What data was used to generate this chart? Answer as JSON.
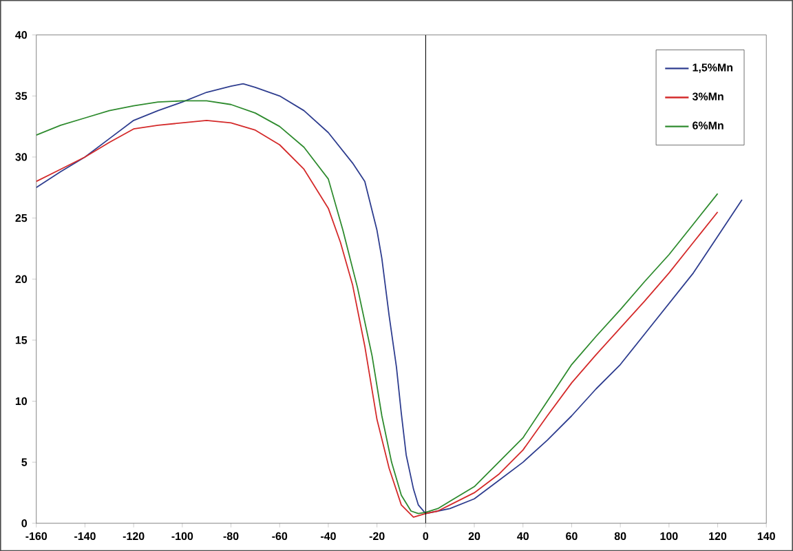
{
  "chart_data": {
    "type": "line",
    "xlim": [
      -160,
      140
    ],
    "ylim": [
      0,
      40
    ],
    "xticks": [
      -160,
      -140,
      -120,
      -100,
      -80,
      -60,
      -40,
      -20,
      0,
      20,
      40,
      60,
      80,
      100,
      120,
      140
    ],
    "yticks": [
      0,
      5,
      10,
      15,
      20,
      25,
      30,
      35,
      40
    ],
    "grid": false,
    "legend": "top right",
    "marker": "none",
    "ref_lines": [
      {
        "axis": "x",
        "value": 0,
        "color": "#000000"
      }
    ],
    "series": [
      {
        "name": "1,5%Mn",
        "color": "#2e3d8f",
        "x": [
          -160,
          -150,
          -140,
          -130,
          -120,
          -110,
          -100,
          -90,
          -80,
          -75,
          -70,
          -60,
          -50,
          -40,
          -30,
          -25,
          -20,
          -18,
          -15,
          -12,
          -10,
          -8,
          -5,
          -3,
          0,
          5,
          10,
          20,
          30,
          40,
          50,
          60,
          70,
          80,
          90,
          100,
          110,
          120,
          130
        ],
        "values": [
          27.5,
          28.8,
          30,
          31.5,
          33,
          33.8,
          34.5,
          35.3,
          35.8,
          36,
          35.7,
          35,
          33.8,
          32,
          29.5,
          28,
          24,
          21.7,
          17,
          12.8,
          9,
          5.6,
          2.8,
          1.5,
          0.8,
          1,
          1.2,
          2,
          3.5,
          5,
          6.8,
          8.8,
          11,
          13,
          15.5,
          18,
          20.5,
          23.5,
          26.5
        ]
      },
      {
        "name": "3%Mn",
        "color": "#d42a2a",
        "x": [
          -160,
          -150,
          -140,
          -130,
          -120,
          -110,
          -100,
          -90,
          -80,
          -70,
          -60,
          -50,
          -40,
          -35,
          -30,
          -25,
          -20,
          -15,
          -10,
          -5,
          0,
          5,
          10,
          20,
          30,
          40,
          50,
          60,
          70,
          80,
          90,
          100,
          110,
          120
        ],
        "values": [
          28,
          29,
          30,
          31.2,
          32.3,
          32.6,
          32.8,
          33,
          32.8,
          32.2,
          31,
          29,
          25.8,
          23,
          19.5,
          14.5,
          8.5,
          4.5,
          1.5,
          0.5,
          0.8,
          1,
          1.5,
          2.5,
          4,
          6,
          8.8,
          11.5,
          13.8,
          16,
          18.2,
          20.5,
          23,
          25.5
        ]
      },
      {
        "name": "6%Mn",
        "color": "#2e8b2e",
        "x": [
          -160,
          -150,
          -140,
          -130,
          -120,
          -110,
          -100,
          -90,
          -80,
          -70,
          -60,
          -50,
          -40,
          -34,
          -28,
          -22,
          -18,
          -14,
          -10,
          -6,
          -3,
          0,
          5,
          10,
          20,
          30,
          40,
          50,
          60,
          70,
          80,
          90,
          100,
          110,
          120
        ],
        "values": [
          31.8,
          32.6,
          33.2,
          33.8,
          34.2,
          34.5,
          34.6,
          34.6,
          34.3,
          33.6,
          32.5,
          30.8,
          28.2,
          24,
          19.3,
          13.7,
          8.8,
          5,
          2.3,
          1,
          0.8,
          0.9,
          1.2,
          1.8,
          3,
          5,
          7,
          10,
          13,
          15.3,
          17.5,
          19.8,
          22,
          24.5,
          27
        ]
      }
    ]
  }
}
